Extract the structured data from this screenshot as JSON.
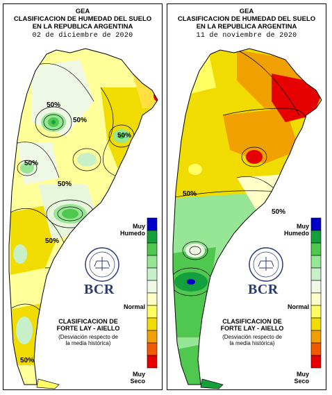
{
  "maps": [
    {
      "org": "GEA",
      "title_line1": "CLASIFICACION DE HUMEDAD DEL SUELO",
      "title_line2": "EN LA REPUBLICA ARGENTINA",
      "date": "02 de diciembre de 2020",
      "contour_labels": [
        "50%",
        "50%",
        "50%",
        "50%",
        "50%",
        "50%",
        "50%"
      ]
    },
    {
      "org": "GEA",
      "title_line1": "CLASIFICACION DE HUMEDAD DEL SUELO",
      "title_line2": "EN LA REPUBLICA ARGENTINA",
      "date": "11 de noviembre de 2020",
      "contour_labels": [
        "50%",
        "50%"
      ]
    }
  ],
  "legend": {
    "top_label_1": "Muy",
    "top_label_2": "Humedo",
    "mid_label": "Normal",
    "bottom_label_1": "Muy",
    "bottom_label_2": "Seco",
    "colors": [
      "#0000c8",
      "#14a03c",
      "#50c850",
      "#96e696",
      "#c8f0c8",
      "#f0f8e6",
      "#ffffc8",
      "#ffff64",
      "#f0dc00",
      "#f0a000",
      "#f05a00",
      "#e60000"
    ]
  },
  "brand": "BCR",
  "seal_text": "BOLSA DE COMERCIO DE ROSARIO",
  "classification_line1": "CLASIFICACION DE",
  "classification_line2": "FORTE LAY - AIELLO",
  "deviation_line1": "(Desviación respecto de",
  "deviation_line2": "la media histórica)",
  "shading": {
    "map1": "mostly yellow/light yellow with green patches in center and south",
    "map2": "orange/red in north-east, yellow center, green in south (Patagonia)"
  }
}
